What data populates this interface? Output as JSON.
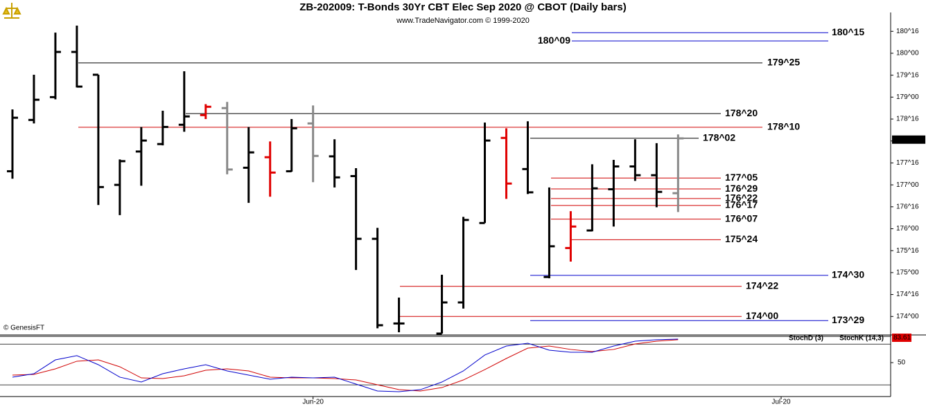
{
  "chart_data": [
    {
      "type": "ohlc",
      "title": "ZB-202009:  T-Bonds 30Yr CBT Elec Sep 2020 @ CBOT  (Daily bars)",
      "subtitle": "www.TradeNavigator.com © 1999-2020",
      "credit": "© GenesisFT",
      "ylim": [
        173.61,
        180.93
      ],
      "xlim": [
        -0.58,
        40.9
      ],
      "xticks": [
        {
          "value": 14,
          "label": "Jun-20"
        },
        {
          "value": 35.8,
          "label": "Jul-20"
        }
      ],
      "yticks": [
        {
          "value": 180.5,
          "label": "180^16"
        },
        {
          "value": 180.0,
          "label": "180^00"
        },
        {
          "value": 179.5,
          "label": "179^16"
        },
        {
          "value": 179.0,
          "label": "179^00"
        },
        {
          "value": 178.5,
          "label": "178^16"
        },
        {
          "value": 178.0,
          "label": "178^00"
        },
        {
          "value": 177.5,
          "label": "177^16"
        },
        {
          "value": 177.0,
          "label": "177^00"
        },
        {
          "value": 176.5,
          "label": "176^16"
        },
        {
          "value": 176.0,
          "label": "176^00"
        },
        {
          "value": 175.5,
          "label": "175^16"
        },
        {
          "value": 175.0,
          "label": "175^00"
        },
        {
          "value": 174.5,
          "label": "174^16"
        },
        {
          "value": 174.0,
          "label": "174^00"
        }
      ],
      "open": [
        177.31,
        178.48,
        179.0,
        180.03,
        179.51,
        177.0,
        177.76,
        177.93,
        178.37,
        178.59,
        178.75,
        177.39,
        177.63,
        177.31,
        178.4,
        177.65,
        177.2,
        175.77,
        173.84,
        null,
        173.61,
        174.32,
        176.13,
        178.07,
        177.36,
        174.9,
        175.56,
        175.96,
        176.9,
        177.42,
        177.22,
        176.81
      ],
      "high": [
        178.72,
        179.51,
        180.47,
        180.63,
        179.51,
        177.58,
        178.32,
        178.69,
        179.59,
        178.84,
        178.89,
        178.32,
        177.99,
        178.5,
        178.81,
        178.04,
        177.38,
        176.02,
        174.43,
        null,
        174.95,
        176.27,
        178.42,
        178.29,
        178.45,
        176.94,
        176.4,
        177.47,
        177.57,
        178.04,
        177.95,
        178.15
      ],
      "low": [
        177.14,
        178.4,
        178.95,
        179.22,
        176.54,
        176.31,
        176.98,
        177.9,
        178.21,
        178.5,
        177.24,
        176.59,
        176.73,
        177.3,
        177.06,
        176.94,
        175.06,
        173.73,
        173.64,
        null,
        173.61,
        174.18,
        176.13,
        176.68,
        176.79,
        174.87,
        175.25,
        175.94,
        176.05,
        177.09,
        176.49,
        176.38
      ],
      "close": [
        178.53,
        178.94,
        180.03,
        179.24,
        176.95,
        177.54,
        178.01,
        178.32,
        178.56,
        178.78,
        177.35,
        177.74,
        177.28,
        178.29,
        177.66,
        177.17,
        175.77,
        173.8,
        173.84,
        null,
        174.32,
        176.2,
        178.01,
        177.03,
        176.83,
        175.6,
        176.05,
        176.92,
        177.42,
        177.22,
        176.84,
        178.06
      ],
      "colors": [
        "#000",
        "#000",
        "#000",
        "#000",
        "#000",
        "#000",
        "#000",
        "#000",
        "#000",
        "#e00000",
        "#888",
        "#000",
        "#e00000",
        "#000",
        "#888",
        "#000",
        "#000",
        "#000",
        "#000",
        null,
        "#000",
        "#000",
        "#000",
        "#e00000",
        "#000",
        "#000",
        "#e00000",
        "#000",
        "#000",
        "#000",
        "#000",
        "#888"
      ],
      "levels": [
        {
          "label": "180^15",
          "value": 180.46875,
          "color": "#0000cc"
        },
        {
          "label": "180^09",
          "value": 180.28125,
          "color": "#0000cc"
        },
        {
          "label": "179^25",
          "value": 179.78125,
          "color": "#000000"
        },
        {
          "label": "178^20",
          "value": 178.625,
          "color": "#000000"
        },
        {
          "label": "178^10",
          "value": 178.3125,
          "color": "#d00000"
        },
        {
          "label": "178^02",
          "value": 178.0625,
          "color": "#000000"
        },
        {
          "label": "177^05",
          "value": 177.15625,
          "color": "#d00000"
        },
        {
          "label": "176^29",
          "value": 176.90625,
          "color": "#d00000"
        },
        {
          "label": "176^22",
          "value": 176.6875,
          "color": "#d00000"
        },
        {
          "label": "176^17",
          "value": 176.53125,
          "color": "#d00000"
        },
        {
          "label": "176^07",
          "value": 176.21875,
          "color": "#d00000"
        },
        {
          "label": "175^24",
          "value": 175.75,
          "color": "#d00000"
        },
        {
          "label": "174^30",
          "value": 174.9375,
          "color": "#0000cc"
        },
        {
          "label": "174^22",
          "value": 174.6875,
          "color": "#d00000"
        },
        {
          "label": "174^00",
          "value": 174.0,
          "color": "#d00000"
        },
        {
          "label": "173^29",
          "value": 173.90625,
          "color": "#0000cc"
        }
      ],
      "last_label": {
        "value": 178.03125,
        "label": "178^01"
      }
    },
    {
      "type": "line",
      "ylim": [
        4.2,
        85.5
      ],
      "yticks": [
        50
      ],
      "reference_lines": [
        20,
        75
      ],
      "last_value": 83.61,
      "series": [
        {
          "name": "StochD (3)",
          "color": "#d00000",
          "values": [
            33.2,
            34.1,
            41.6,
            51.9,
            53.7,
            44.4,
            29.4,
            28.5,
            32.2,
            39.7,
            41.6,
            38.8,
            30.4,
            29.4,
            29.4,
            28.5,
            26.6,
            20.1,
            13.5,
            11.7,
            16.3,
            26.6,
            40.6,
            55.6,
            69.6,
            72.4,
            67.8,
            65.0,
            67.8,
            75.2,
            79.0,
            80.9
          ]
        },
        {
          "name": "StochK (14,3)",
          "color": "#0000cc",
          "values": [
            30.4,
            35.0,
            53.7,
            59.4,
            47.2,
            30.4,
            23.8,
            35.0,
            41.6,
            47.2,
            38.8,
            33.2,
            27.6,
            30.4,
            29.4,
            30.4,
            21.0,
            11.7,
            10.7,
            13.5,
            23.8,
            38.8,
            60.3,
            72.4,
            76.2,
            66.8,
            64.0,
            64.0,
            72.4,
            79.0,
            80.9,
            81.8
          ]
        }
      ]
    }
  ]
}
